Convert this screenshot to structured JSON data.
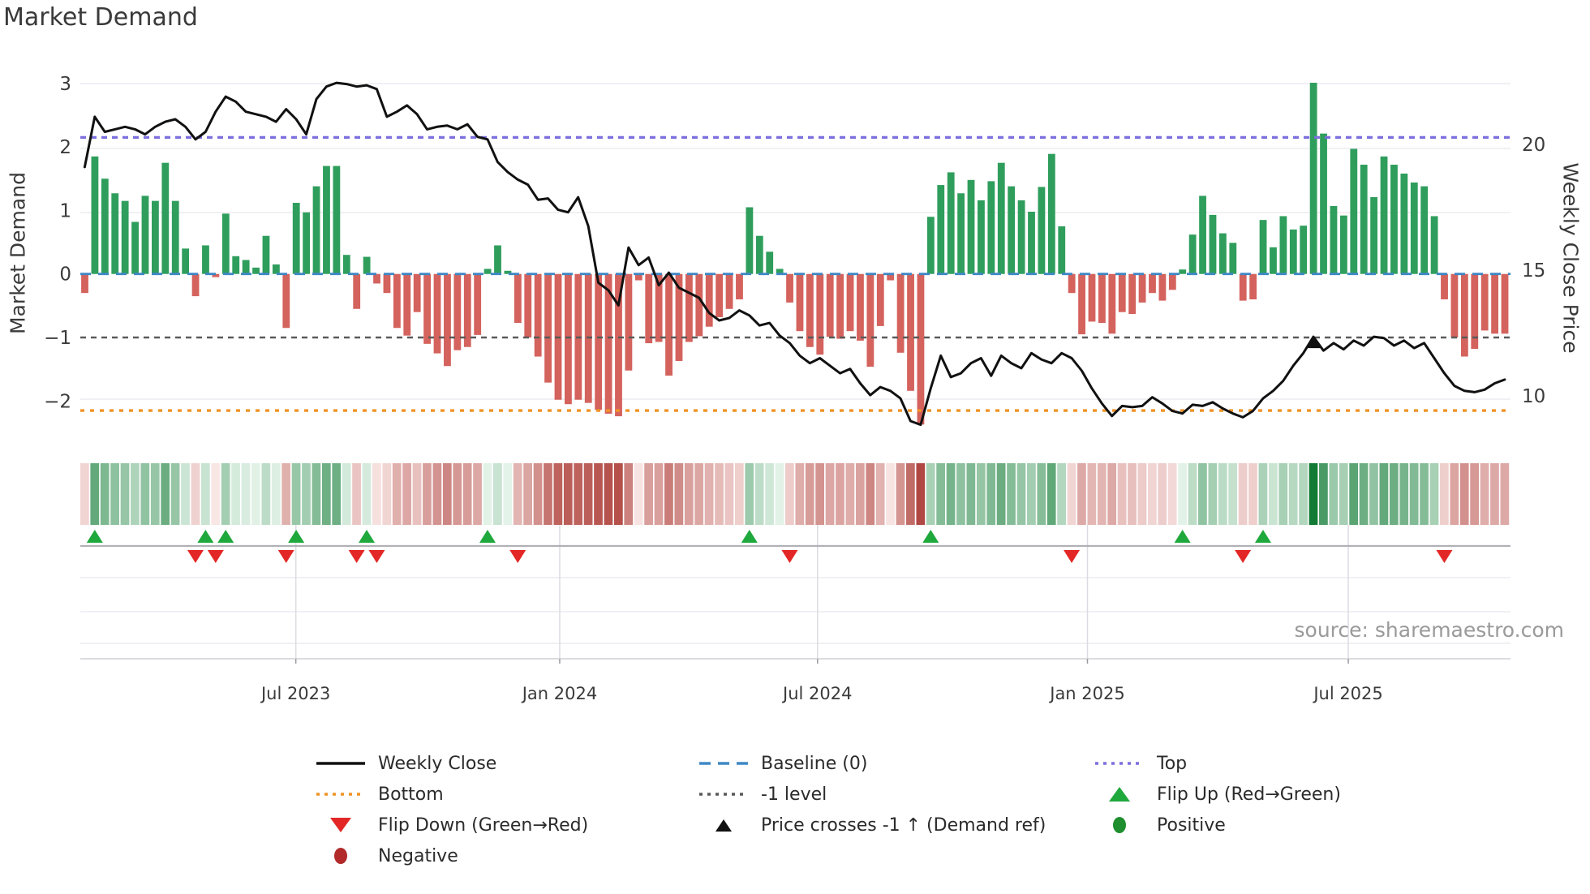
{
  "title": "Market Demand",
  "source_label": "source: sharemaestro.com",
  "axes": {
    "left_label": "Market Demand",
    "right_label": "Weekly Close Price",
    "left_ticks": [
      3,
      2,
      1,
      0,
      -1,
      -2
    ],
    "right_ticks": [
      20,
      15,
      10
    ],
    "x_ticks": [
      {
        "label": "Jul 2023",
        "week": 21.4
      },
      {
        "label": "Jan 2024",
        "week": 47.6
      },
      {
        "label": "Jul 2024",
        "week": 73.2
      },
      {
        "label": "Jan 2025",
        "week": 100.0
      },
      {
        "label": "Jul 2025",
        "week": 125.9
      }
    ]
  },
  "chart_data": {
    "type": "bar+line+heatmap",
    "x_unit": "week",
    "n_weeks": 142,
    "x_range_note": "weekly data, Feb 2023 through Oct 2025",
    "demand_ylim": [
      -2.65,
      3.1
    ],
    "price_ylim": [
      8.2,
      22.7
    ],
    "reference_lines": {
      "baseline": 0,
      "top": 2.15,
      "minus_one": -1,
      "bottom": -2.15
    },
    "price_cross_week": 122,
    "series": [
      {
        "name": "Market Demand",
        "type": "bar",
        "values": [
          -0.3,
          1.85,
          1.5,
          1.27,
          1.15,
          0.82,
          1.23,
          1.15,
          1.75,
          1.15,
          0.4,
          -0.35,
          0.45,
          -0.05,
          0.95,
          0.28,
          0.22,
          0.1,
          0.6,
          0.15,
          -0.85,
          1.12,
          0.97,
          1.38,
          1.7,
          1.7,
          0.3,
          -0.55,
          0.27,
          -0.15,
          -0.3,
          -0.85,
          -0.97,
          -0.6,
          -1.1,
          -1.25,
          -1.45,
          -1.2,
          -1.15,
          -0.96,
          0.08,
          0.45,
          0.05,
          -0.77,
          -1.0,
          -1.3,
          -1.71,
          -1.98,
          -2.05,
          -1.98,
          -2.03,
          -2.14,
          -2.2,
          -2.24,
          -1.52,
          -0.1,
          -1.09,
          -1.07,
          -1.6,
          -1.37,
          -1.07,
          -0.98,
          -0.83,
          -0.68,
          -0.55,
          -0.4,
          1.05,
          0.6,
          0.35,
          0.08,
          -0.45,
          -0.9,
          -1.15,
          -1.27,
          -0.99,
          -1.02,
          -0.9,
          -1.05,
          -1.46,
          -0.82,
          -0.1,
          -1.24,
          -1.84,
          -2.37,
          0.9,
          1.4,
          1.6,
          1.27,
          1.48,
          1.16,
          1.46,
          1.75,
          1.38,
          1.16,
          0.98,
          1.37,
          1.89,
          0.75,
          -0.3,
          -0.95,
          -0.75,
          -0.77,
          -0.94,
          -0.6,
          -0.63,
          -0.45,
          -0.3,
          -0.42,
          -0.25,
          0.07,
          0.62,
          1.23,
          0.93,
          0.64,
          0.49,
          -0.42,
          -0.4,
          0.85,
          0.42,
          0.91,
          0.7,
          0.76,
          3.01,
          2.21,
          1.07,
          0.92,
          1.97,
          1.72,
          1.21,
          1.85,
          1.72,
          1.58,
          1.44,
          1.38,
          0.91,
          -0.4,
          -1.0,
          -1.3,
          -1.18,
          -0.89,
          -0.94,
          -0.94
        ]
      },
      {
        "name": "Weekly Close",
        "type": "line",
        "values": [
          19.1,
          21.1,
          20.5,
          20.6,
          20.7,
          20.6,
          20.4,
          20.7,
          20.9,
          21.0,
          20.7,
          20.2,
          20.5,
          21.3,
          21.9,
          21.7,
          21.3,
          21.2,
          21.1,
          20.9,
          21.4,
          21.0,
          20.4,
          21.8,
          22.3,
          22.45,
          22.4,
          22.3,
          22.35,
          22.2,
          21.1,
          21.3,
          21.55,
          21.2,
          20.6,
          20.7,
          20.75,
          20.6,
          20.8,
          20.3,
          20.2,
          19.3,
          18.9,
          18.6,
          18.4,
          17.8,
          17.85,
          17.4,
          17.3,
          17.9,
          16.75,
          14.5,
          14.2,
          13.6,
          15.9,
          15.2,
          15.5,
          14.4,
          14.9,
          14.3,
          14.1,
          13.9,
          13.3,
          13.0,
          13.1,
          13.4,
          13.2,
          12.8,
          12.9,
          12.4,
          12.1,
          11.6,
          11.3,
          11.5,
          11.2,
          10.9,
          11.07,
          10.5,
          10.03,
          10.35,
          10.2,
          9.9,
          9.0,
          8.85,
          10.3,
          11.6,
          10.75,
          10.9,
          11.3,
          11.5,
          10.8,
          11.6,
          11.3,
          11.1,
          11.7,
          11.45,
          11.3,
          11.7,
          11.5,
          11.0,
          10.3,
          9.7,
          9.2,
          9.6,
          9.55,
          9.6,
          9.95,
          9.7,
          9.4,
          9.3,
          9.65,
          9.6,
          9.75,
          9.5,
          9.3,
          9.15,
          9.4,
          9.9,
          10.2,
          10.6,
          11.2,
          11.7,
          12.35,
          11.8,
          12.1,
          11.85,
          12.2,
          12.0,
          12.35,
          12.3,
          12.0,
          12.2,
          11.9,
          12.1,
          11.5,
          10.9,
          10.4,
          10.2,
          10.15,
          10.25,
          10.5,
          10.65
        ]
      }
    ],
    "heatmap_note": "strip below main chart repeats demand values as green/red intensity cells",
    "legend_position": "bottom"
  },
  "legend": {
    "items": [
      {
        "swatch": "solid-line",
        "color_key": "price_line",
        "label": "Weekly Close"
      },
      {
        "swatch": "dashed-line",
        "color_key": "baseline",
        "label": "Baseline (0)"
      },
      {
        "swatch": "dotted-line",
        "color_key": "top",
        "label": "Top"
      },
      {
        "swatch": "dotted-line",
        "color_key": "bottom",
        "label": "Bottom"
      },
      {
        "swatch": "dotted-line",
        "color_key": "minus_one",
        "label": "-1 level"
      },
      {
        "swatch": "triangle-up",
        "color_key": "flip_up",
        "label": "Flip Up (Red→Green)"
      },
      {
        "swatch": "triangle-down",
        "color_key": "flip_down",
        "label": "Flip Down (Green→Red)"
      },
      {
        "swatch": "triangle-up-sm",
        "color_key": "price_cross",
        "label": "Price crosses -1 ↑ (Demand ref)"
      },
      {
        "swatch": "circle",
        "color_key": "positive_dot",
        "label": "Positive"
      },
      {
        "swatch": "circle",
        "color_key": "negative_dot",
        "label": "Negative"
      }
    ]
  },
  "colors": {
    "price_line": "#111111",
    "baseline": "#3f88c5",
    "top": "#7b6fde",
    "bottom": "#ef9426",
    "minus_one": "#5a5a5a",
    "flip_up": "#1fa83c",
    "flip_down": "#e32726",
    "price_cross": "#111111",
    "positive_dot": "#1e8e2e",
    "negative_dot": "#b22a2a",
    "bar_positive": "#2f9e5c",
    "bar_negative": "#d4625d",
    "heatmap_green_hi": "#117a35",
    "heatmap_green_lo": "#e8f5ec",
    "heatmap_red_hi": "#b04540",
    "heatmap_red_lo": "#faeae8",
    "gridline": "#ebebf0",
    "tick_text": "#3b3b3b"
  }
}
